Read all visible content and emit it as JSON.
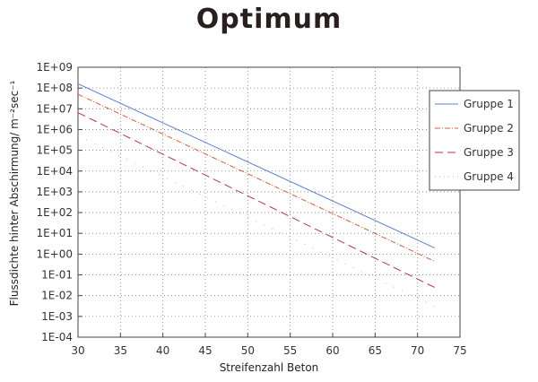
{
  "chart_data": {
    "type": "line",
    "title": "Optimum",
    "xlabel": "Streifenzahl Beton",
    "ylabel": "Flussdichte hinter Abschirmung/ m⁻²sec⁻¹",
    "xlim": [
      30,
      75
    ],
    "ylim": [
      0.0001,
      1000000000.0
    ],
    "yscale": "log",
    "xticks": [
      30,
      35,
      40,
      45,
      50,
      55,
      60,
      65,
      70,
      75
    ],
    "yticks": [
      "1E-04",
      "1E-03",
      "1E-02",
      "1E-01",
      "1E+00",
      "1E+01",
      "1E+02",
      "1E+03",
      "1E+04",
      "1E+05",
      "1E+06",
      "1E+07",
      "1E+08",
      "1E+09"
    ],
    "grid": true,
    "legend_position": "right",
    "series": [
      {
        "name": "Gruppe  1",
        "color": "#5b7fd6",
        "dash": "solid",
        "x": [
          30,
          72
        ],
        "y": [
          160000000.0,
          2.0
        ]
      },
      {
        "name": "Gruppe  2",
        "color": "#e05a3a",
        "dash": "dashdot",
        "x": [
          30,
          72
        ],
        "y": [
          50000000.0,
          0.45
        ]
      },
      {
        "name": "Gruppe  3",
        "color": "#c0334a",
        "dash": "dashed",
        "x": [
          30,
          72
        ],
        "y": [
          6500000.0,
          0.025
        ]
      },
      {
        "name": "Gruppe  4",
        "color": "#b8b8b8",
        "dash": "dotted",
        "x": [
          30,
          72
        ],
        "y": [
          500000.0,
          0.003
        ]
      }
    ]
  }
}
